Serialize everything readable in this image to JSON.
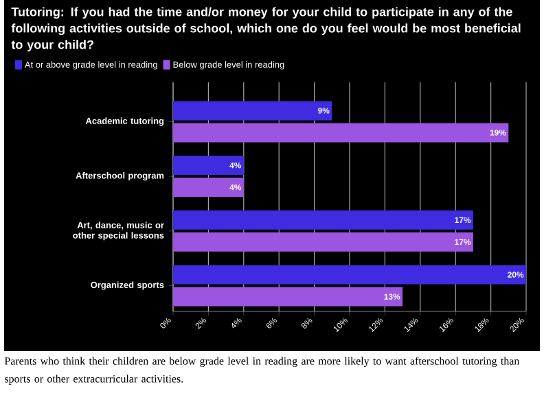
{
  "chart_data": {
    "type": "bar",
    "orientation": "horizontal",
    "title": "Tutoring: If you had the time and/or money for your child to participate in any of the following activities outside of school, which one do you feel would be most beneficial to your child?",
    "categories": [
      "Academic tutoring",
      "Afterschool program",
      "Art, dance, music or other special lessons",
      "Organized sports"
    ],
    "series": [
      {
        "name": "At or above grade level in reading",
        "color": "#3f2be0",
        "values": [
          9,
          4,
          17,
          20
        ],
        "value_labels": [
          "9%",
          "4%",
          "17%",
          "20%"
        ]
      },
      {
        "name": "Below grade level in reading",
        "color": "#9b55e0",
        "values": [
          19,
          4,
          17,
          13
        ],
        "value_labels": [
          "19%",
          "4%",
          "17%",
          "13%"
        ]
      }
    ],
    "xlim": [
      0,
      20
    ],
    "xticks": [
      {
        "value": 0,
        "label": "0%"
      },
      {
        "value": 2,
        "label": "2%"
      },
      {
        "value": 4,
        "label": "4%"
      },
      {
        "value": 6,
        "label": "6%"
      },
      {
        "value": 8,
        "label": "8%"
      },
      {
        "value": 10,
        "label": "10%"
      },
      {
        "value": 12,
        "label": "12%"
      },
      {
        "value": 14,
        "label": "14%"
      },
      {
        "value": 16,
        "label": "16%"
      },
      {
        "value": 18,
        "label": "18%"
      },
      {
        "value": 20,
        "label": "20%"
      }
    ],
    "grid": "x",
    "legend": "top left",
    "annotations": [
      "Parents who think their children are below grade level in reading are more likely to want afterschool tutoring than sports or other extracurricular activities."
    ]
  }
}
